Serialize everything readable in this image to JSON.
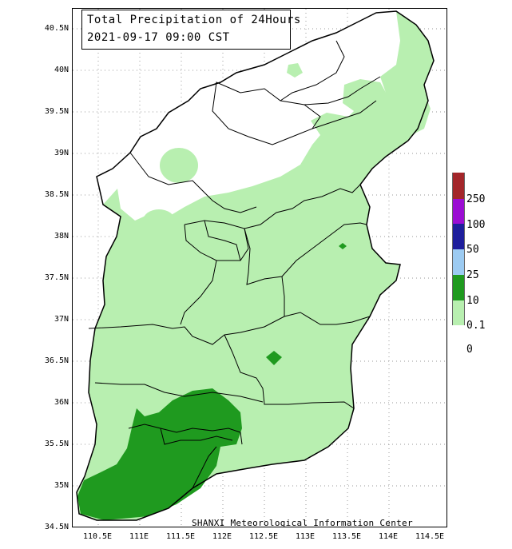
{
  "map": {
    "title": "Total Precipitation of 24Hours",
    "datetime": "2021-09-17 09:00 CST",
    "credit": "SHANXI Meteorological Information Center",
    "latitude_labels": [
      "40.5N",
      "40N",
      "39.5N",
      "39N",
      "38.5N",
      "38N",
      "37.5N",
      "37N",
      "36.5N",
      "36N",
      "35.5N",
      "35N",
      "34.5N"
    ],
    "longitude_labels": [
      "110.5E",
      "111E",
      "111.5E",
      "112E",
      "112.5E",
      "113E",
      "113.5E",
      "114E",
      "114.5E"
    ],
    "legend": [
      {
        "label": "250",
        "color": "#a3262a"
      },
      {
        "label": "100",
        "color": "#9b0dd3"
      },
      {
        "label": "50",
        "color": "#1e1e9c"
      },
      {
        "label": "25",
        "color": "#9ccbf2"
      },
      {
        "label": "10",
        "color": "#1f9a1f"
      },
      {
        "label": "0.1",
        "color": "#b8efb0"
      },
      {
        "label": "0",
        "color": "#ffffff"
      }
    ],
    "colors": {
      "light_green": "#b8efb0",
      "dark_green": "#1f9a1f",
      "border": "#000000",
      "grid": "#888888"
    }
  }
}
